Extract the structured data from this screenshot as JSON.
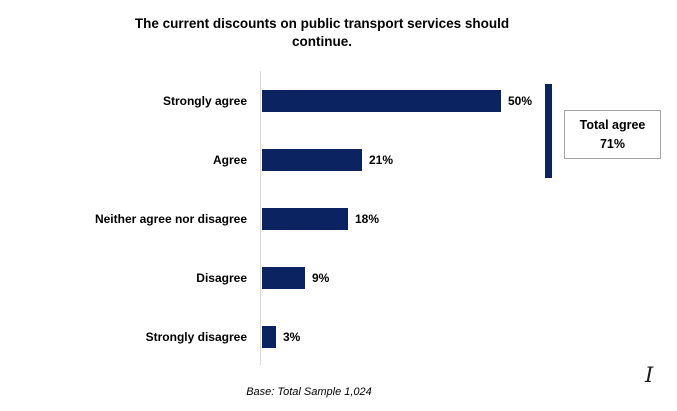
{
  "title": {
    "line1": "The current discounts on public transport services should",
    "line2": "continue."
  },
  "chart_data": {
    "type": "bar",
    "orientation": "horizontal",
    "title": "The current discounts on public transport services should continue.",
    "categories": [
      "Strongly agree",
      "Agree",
      "Neither agree nor disagree",
      "Disagree",
      "Strongly disagree"
    ],
    "values": [
      50,
      21,
      18,
      9,
      3
    ],
    "value_labels": [
      "50%",
      "21%",
      "18%",
      "9%",
      "3%"
    ],
    "xlim": [
      0,
      52
    ],
    "grid": false,
    "legend": null,
    "annotation": {
      "label": "Total agree",
      "value": "71%",
      "covers_categories": [
        "Strongly agree",
        "Agree"
      ]
    },
    "footnote": "Base: Total Sample 1,024"
  },
  "total_box": {
    "label": "Total agree",
    "value": "71%"
  },
  "footnote": "Base: Total Sample 1,024",
  "cursor_glyph": "I",
  "colors": {
    "bar": "#0b2360",
    "axis_line": "#d9d9d9",
    "box_border": "#a6a6a6",
    "text": "#000000"
  }
}
